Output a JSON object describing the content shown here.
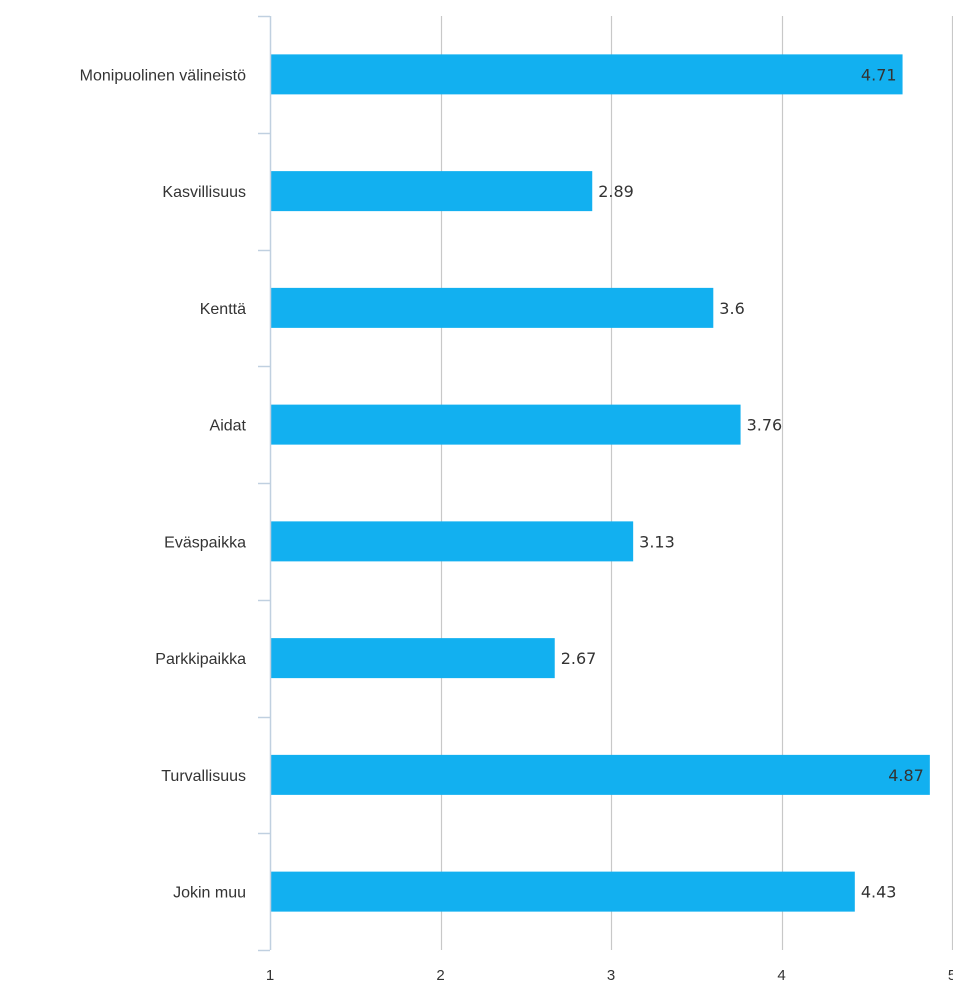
{
  "chart_data": {
    "type": "bar",
    "orientation": "horizontal",
    "categories": [
      "Monipuolinen välineistö",
      "Kasvillisuus",
      "Kenttä",
      "Aidat",
      "Eväspaikka",
      "Parkkipaikka",
      "Turvallisuus",
      "Jokin muu"
    ],
    "values": [
      4.71,
      2.89,
      3.6,
      3.76,
      3.13,
      2.67,
      4.87,
      4.43
    ],
    "value_labels": [
      "4.71",
      "2.89",
      "3.6",
      "3.76",
      "3.13",
      "2.67",
      "4.87",
      "4.43"
    ],
    "xlim": [
      1,
      5
    ],
    "xticks": [
      1,
      2,
      3,
      4,
      5
    ],
    "xtick_labels": [
      "1",
      "2",
      "3",
      "4",
      "5"
    ],
    "grid": true,
    "legend": "none",
    "title": "",
    "xlabel": "",
    "ylabel": "",
    "colors": {
      "bar": "#12B0F0",
      "grid": "#C8C8C8",
      "axis": "#C0D0E0",
      "text": "#333333"
    }
  }
}
